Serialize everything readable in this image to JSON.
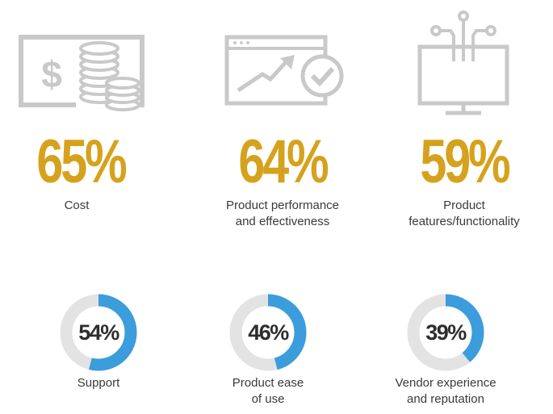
{
  "colors": {
    "gold": "#d6a21d",
    "blue": "#3b9ddc",
    "track": "#e3e3e3",
    "icon_gray": "#c9c9c9",
    "text": "#3a3a3a"
  },
  "chart_data": {
    "type": "infographic",
    "top_stats": [
      {
        "value": 65,
        "display": "65%",
        "label_lines": [
          "Cost"
        ],
        "icon": "money-icon"
      },
      {
        "value": 64,
        "display": "64%",
        "label_lines": [
          "Product performance",
          "and effectiveness"
        ],
        "icon": "browser-growth-icon"
      },
      {
        "value": 59,
        "display": "59%",
        "label_lines": [
          "Product",
          "features/functionality"
        ],
        "icon": "monitor-circuit-icon"
      }
    ],
    "donuts": [
      {
        "value": 54,
        "display": "54%",
        "label_lines": [
          "Support"
        ]
      },
      {
        "value": 46,
        "display": "46%",
        "label_lines": [
          "Product ease",
          "of use"
        ]
      },
      {
        "value": 39,
        "display": "39%",
        "label_lines": [
          "Vendor experience",
          "and reputation"
        ]
      }
    ]
  }
}
